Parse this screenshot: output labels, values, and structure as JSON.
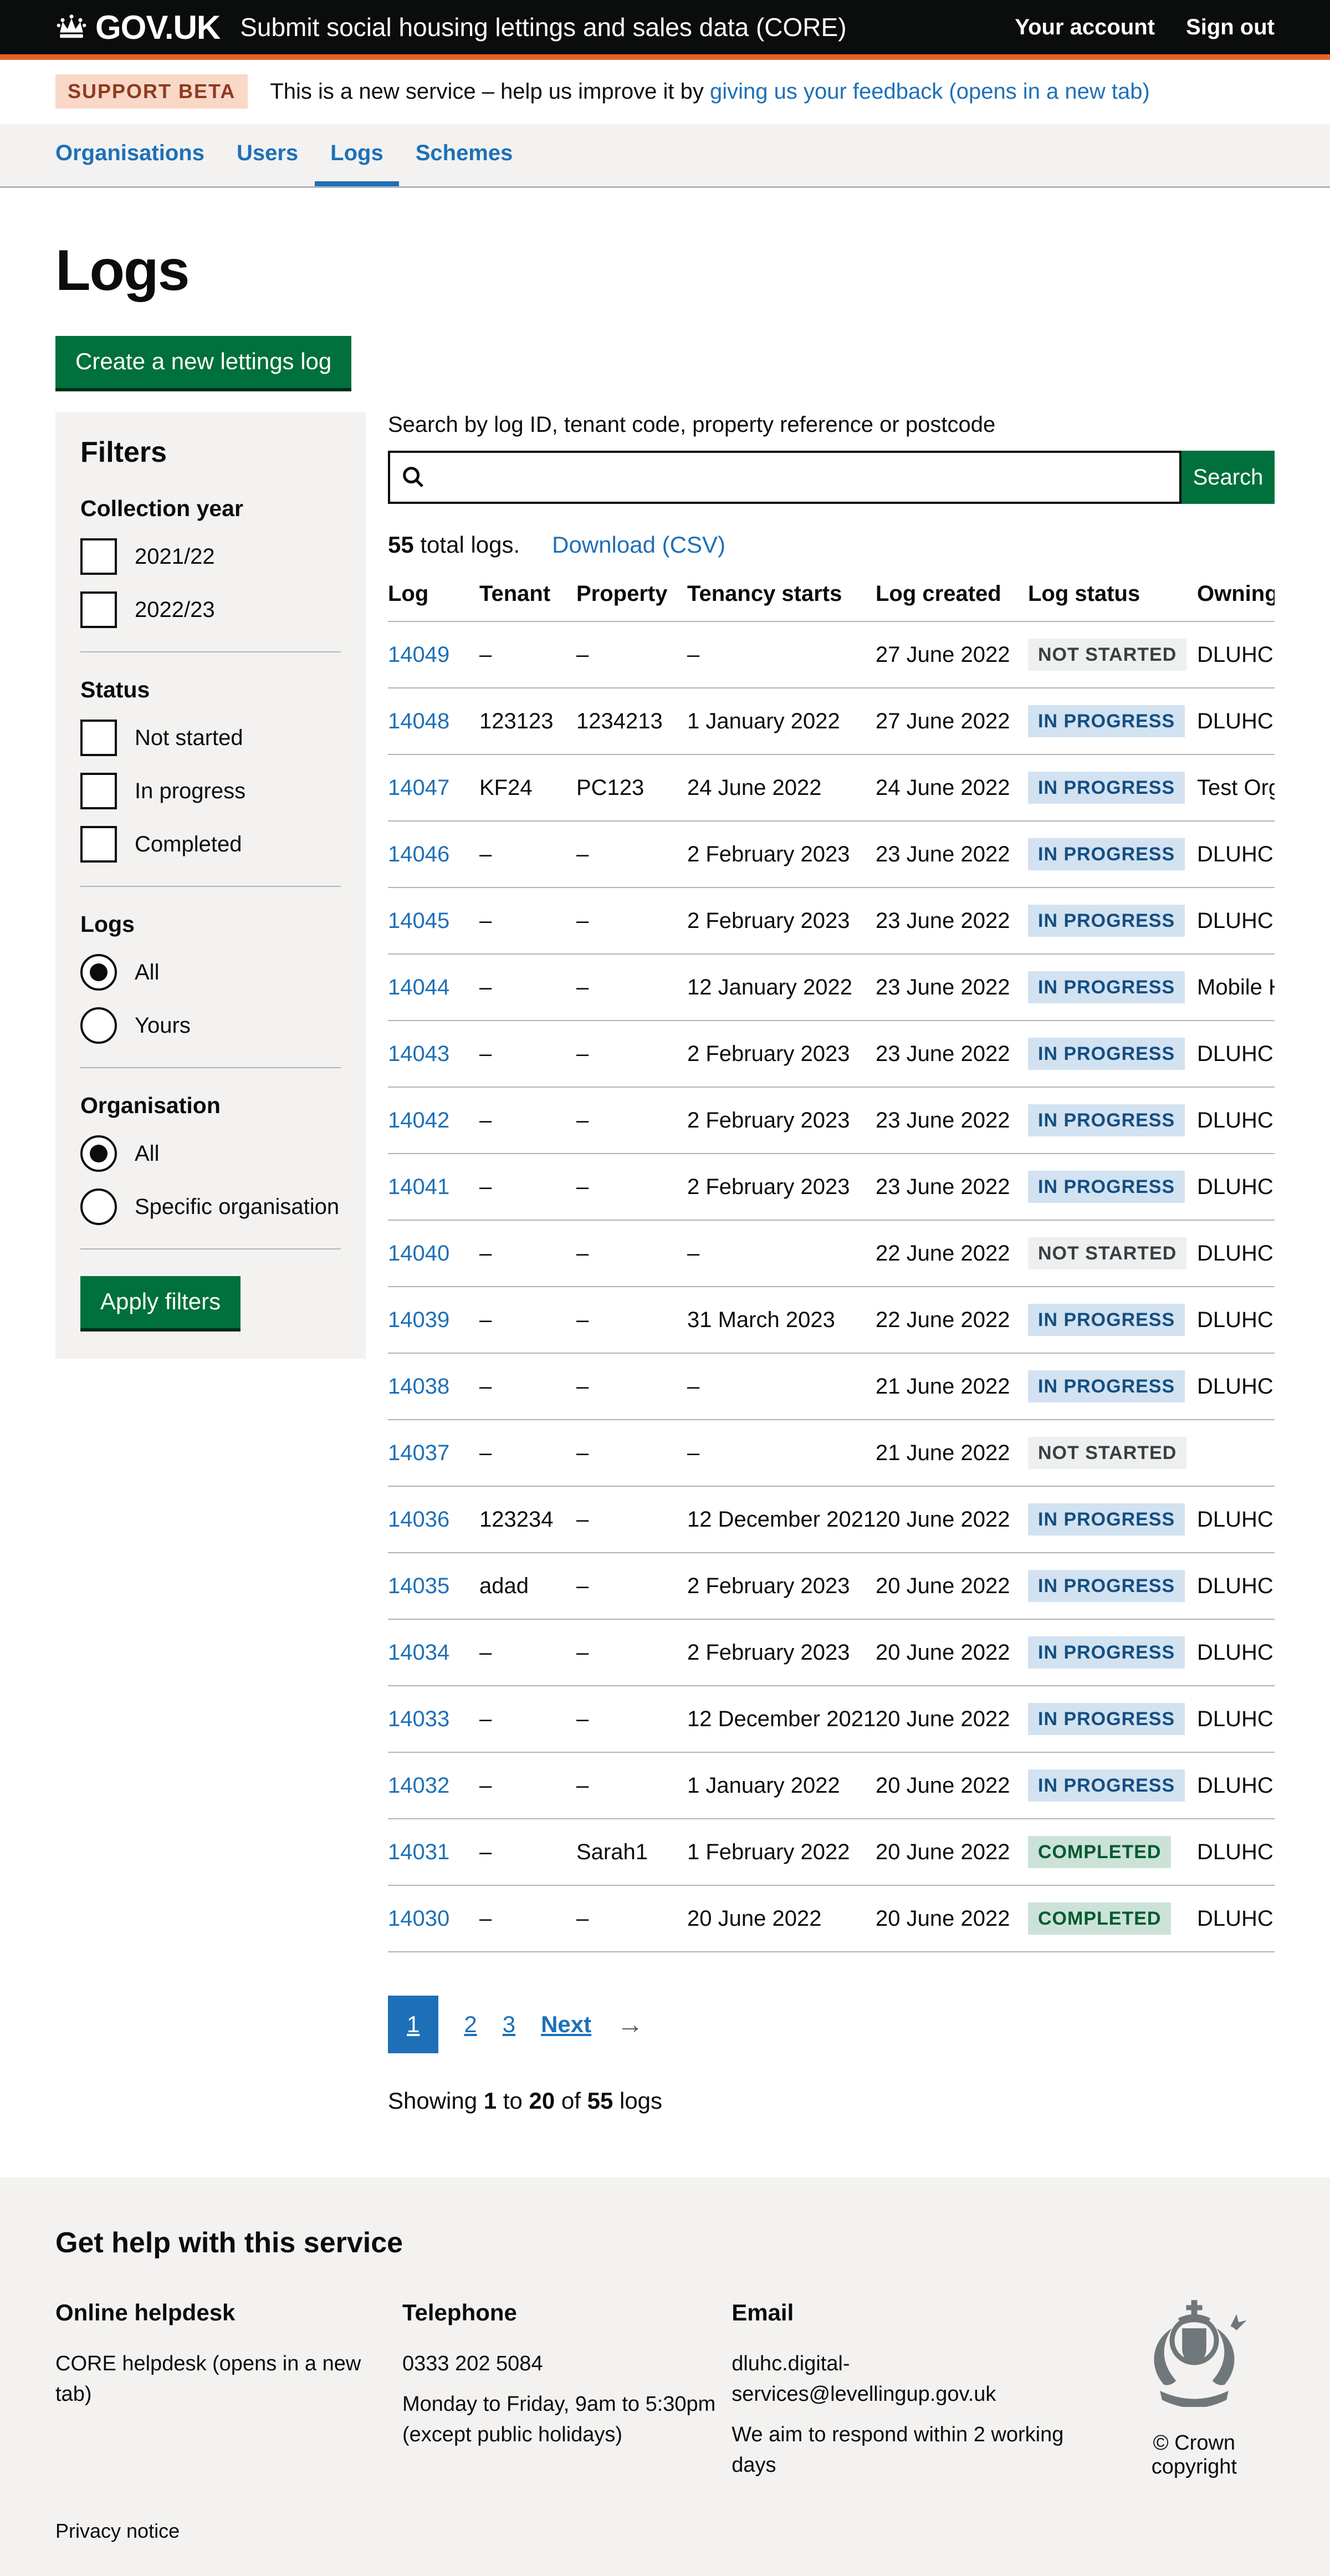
{
  "header": {
    "logo_text": "GOV.UK",
    "service_name": "Submit social housing lettings and sales data (CORE)",
    "account_link": "Your account",
    "signout_link": "Sign out"
  },
  "phase": {
    "tag": "SUPPORT BETA",
    "text_before": "This is a new service – help us improve it by ",
    "link": "giving us your feedback (opens in a new tab)"
  },
  "nav": {
    "items": [
      {
        "label": "Organisations",
        "active": false
      },
      {
        "label": "Users",
        "active": false
      },
      {
        "label": "Logs",
        "active": true
      },
      {
        "label": "Schemes",
        "active": false
      }
    ]
  },
  "page": {
    "title": "Logs",
    "create_button": "Create a new lettings log"
  },
  "filters": {
    "title": "Filters",
    "groups": [
      {
        "type": "checkbox",
        "heading": "Collection year",
        "options": [
          {
            "label": "2021/22",
            "checked": false
          },
          {
            "label": "2022/23",
            "checked": false
          }
        ]
      },
      {
        "type": "checkbox",
        "heading": "Status",
        "options": [
          {
            "label": "Not started",
            "checked": false
          },
          {
            "label": "In progress",
            "checked": false
          },
          {
            "label": "Completed",
            "checked": false
          }
        ]
      },
      {
        "type": "radio",
        "heading": "Logs",
        "options": [
          {
            "label": "All",
            "selected": true
          },
          {
            "label": "Yours",
            "selected": false
          }
        ]
      },
      {
        "type": "radio",
        "heading": "Organisation",
        "options": [
          {
            "label": "All",
            "selected": true
          },
          {
            "label": "Specific organisation",
            "selected": false
          }
        ]
      }
    ],
    "apply_button": "Apply filters"
  },
  "search": {
    "label": "Search by log ID, tenant code, property reference or postcode",
    "value": "",
    "button": "Search"
  },
  "results": {
    "count": "55",
    "count_suffix": " total logs.",
    "download_link": "Download (CSV)"
  },
  "table": {
    "columns": [
      {
        "label": "Log"
      },
      {
        "label": "Tenant"
      },
      {
        "label": "Property"
      },
      {
        "label": "Tenancy starts"
      },
      {
        "label": "Log created"
      },
      {
        "label": "Log status"
      },
      {
        "label": "Owning or"
      }
    ],
    "rows": [
      {
        "log": "14049",
        "tenant": "–",
        "property": "–",
        "tenancy_starts": "–",
        "log_created": "27 June 2022",
        "status": "NOT STARTED",
        "status_type": "grey",
        "owning": "DLUHC"
      },
      {
        "log": "14048",
        "tenant": "123123",
        "property": "1234213",
        "tenancy_starts": "1 January 2022",
        "log_created": "27 June 2022",
        "status": "IN PROGRESS",
        "status_type": "blue",
        "owning": "DLUHC"
      },
      {
        "log": "14047",
        "tenant": "KF24",
        "property": "PC123",
        "tenancy_starts": "24 June 2022",
        "log_created": "24 June 2022",
        "status": "IN PROGRESS",
        "status_type": "blue",
        "owning": "Test Organi"
      },
      {
        "log": "14046",
        "tenant": "–",
        "property": "–",
        "tenancy_starts": "2 February 2023",
        "log_created": "23 June 2022",
        "status": "IN PROGRESS",
        "status_type": "blue",
        "owning": "DLUHC Tes"
      },
      {
        "log": "14045",
        "tenant": "–",
        "property": "–",
        "tenancy_starts": "2 February 2023",
        "log_created": "23 June 2022",
        "status": "IN PROGRESS",
        "status_type": "blue",
        "owning": "DLUHC Tes"
      },
      {
        "log": "14044",
        "tenant": "–",
        "property": "–",
        "tenancy_starts": "12 January 2022",
        "log_created": "23 June 2022",
        "status": "IN PROGRESS",
        "status_type": "blue",
        "owning": "Mobile Hou"
      },
      {
        "log": "14043",
        "tenant": "–",
        "property": "–",
        "tenancy_starts": "2 February 2023",
        "log_created": "23 June 2022",
        "status": "IN PROGRESS",
        "status_type": "blue",
        "owning": "DLUHC Tes"
      },
      {
        "log": "14042",
        "tenant": "–",
        "property": "–",
        "tenancy_starts": "2 February 2023",
        "log_created": "23 June 2022",
        "status": "IN PROGRESS",
        "status_type": "blue",
        "owning": "DLUHC Tes"
      },
      {
        "log": "14041",
        "tenant": "–",
        "property": "–",
        "tenancy_starts": "2 February 2023",
        "log_created": "23 June 2022",
        "status": "IN PROGRESS",
        "status_type": "blue",
        "owning": "DLUHC"
      },
      {
        "log": "14040",
        "tenant": "–",
        "property": "–",
        "tenancy_starts": "–",
        "log_created": "22 June 2022",
        "status": "NOT STARTED",
        "status_type": "grey",
        "owning": "DLUHC"
      },
      {
        "log": "14039",
        "tenant": "–",
        "property": "–",
        "tenancy_starts": "31 March 2023",
        "log_created": "22 June 2022",
        "status": "IN PROGRESS",
        "status_type": "blue",
        "owning": "DLUHC Tes"
      },
      {
        "log": "14038",
        "tenant": "–",
        "property": "–",
        "tenancy_starts": "–",
        "log_created": "21 June 2022",
        "status": "IN PROGRESS",
        "status_type": "blue",
        "owning": "DLUHC"
      },
      {
        "log": "14037",
        "tenant": "–",
        "property": "–",
        "tenancy_starts": "–",
        "log_created": "21 June 2022",
        "status": "NOT STARTED",
        "status_type": "grey",
        "owning": ""
      },
      {
        "log": "14036",
        "tenant": "123234",
        "property": "–",
        "tenancy_starts": "12 December 2021",
        "log_created": "20 June 2022",
        "status": "IN PROGRESS",
        "status_type": "blue",
        "owning": "DLUHC Tes"
      },
      {
        "log": "14035",
        "tenant": "adad",
        "property": "–",
        "tenancy_starts": "2 February 2023",
        "log_created": "20 June 2022",
        "status": "IN PROGRESS",
        "status_type": "blue",
        "owning": "DLUHC Tes"
      },
      {
        "log": "14034",
        "tenant": "–",
        "property": "–",
        "tenancy_starts": "2 February 2023",
        "log_created": "20 June 2022",
        "status": "IN PROGRESS",
        "status_type": "blue",
        "owning": "DLUHC Tes"
      },
      {
        "log": "14033",
        "tenant": "–",
        "property": "–",
        "tenancy_starts": "12 December 2021",
        "log_created": "20 June 2022",
        "status": "IN PROGRESS",
        "status_type": "blue",
        "owning": "DLUHC Tes"
      },
      {
        "log": "14032",
        "tenant": "–",
        "property": "–",
        "tenancy_starts": "1 January 2022",
        "log_created": "20 June 2022",
        "status": "IN PROGRESS",
        "status_type": "blue",
        "owning": "DLUHC Tes"
      },
      {
        "log": "14031",
        "tenant": "–",
        "property": "Sarah1",
        "tenancy_starts": "1 February 2022",
        "log_created": "20 June 2022",
        "status": "COMPLETED",
        "status_type": "green",
        "owning": "DLUHC Tes"
      },
      {
        "log": "14030",
        "tenant": "–",
        "property": "–",
        "tenancy_starts": "20 June 2022",
        "log_created": "20 June 2022",
        "status": "COMPLETED",
        "status_type": "green",
        "owning": "DLUHC Tes"
      }
    ]
  },
  "pagination": {
    "pages": [
      {
        "label": "1",
        "current": true
      },
      {
        "label": "2",
        "current": false
      },
      {
        "label": "3",
        "current": false
      }
    ],
    "next": "Next",
    "arrow": "→"
  },
  "showing": {
    "prefix": "Showing ",
    "from": "1",
    "mid1": " to ",
    "to": "20",
    "mid2": " of ",
    "total": "55",
    "suffix": " logs"
  },
  "footer": {
    "title": "Get help with this service",
    "helpdesk": {
      "heading": "Online helpdesk",
      "link": "CORE helpdesk (opens in a new tab)"
    },
    "telephone": {
      "heading": "Telephone",
      "number": "0333 202 5084",
      "line1": "Monday to Friday, 9am to 5:30pm",
      "line2": "(except public holidays)"
    },
    "email": {
      "heading": "Email",
      "link": "dluhc.digital-services@levellingup.gov.uk",
      "note": "We aim to respond within 2 working days"
    },
    "copyright": "© Crown copyright",
    "privacy": "Privacy notice"
  },
  "colors": {
    "header_black": "#0b0c0c",
    "brand_orange": "#e8622c",
    "link_blue": "#1d70b8",
    "button_green": "#00703c",
    "panel_grey": "#f3f2f1",
    "border_grey": "#b1b4b6",
    "beta_tag_bg": "#f9d8c7",
    "beta_tag_text": "#8c3b20",
    "tag_grey_bg": "#eeefef",
    "tag_grey_text": "#383f43",
    "tag_blue_bg": "#d2e2f1",
    "tag_blue_text": "#144e81",
    "tag_green_bg": "#cce2d8",
    "tag_green_text": "#005a30"
  }
}
